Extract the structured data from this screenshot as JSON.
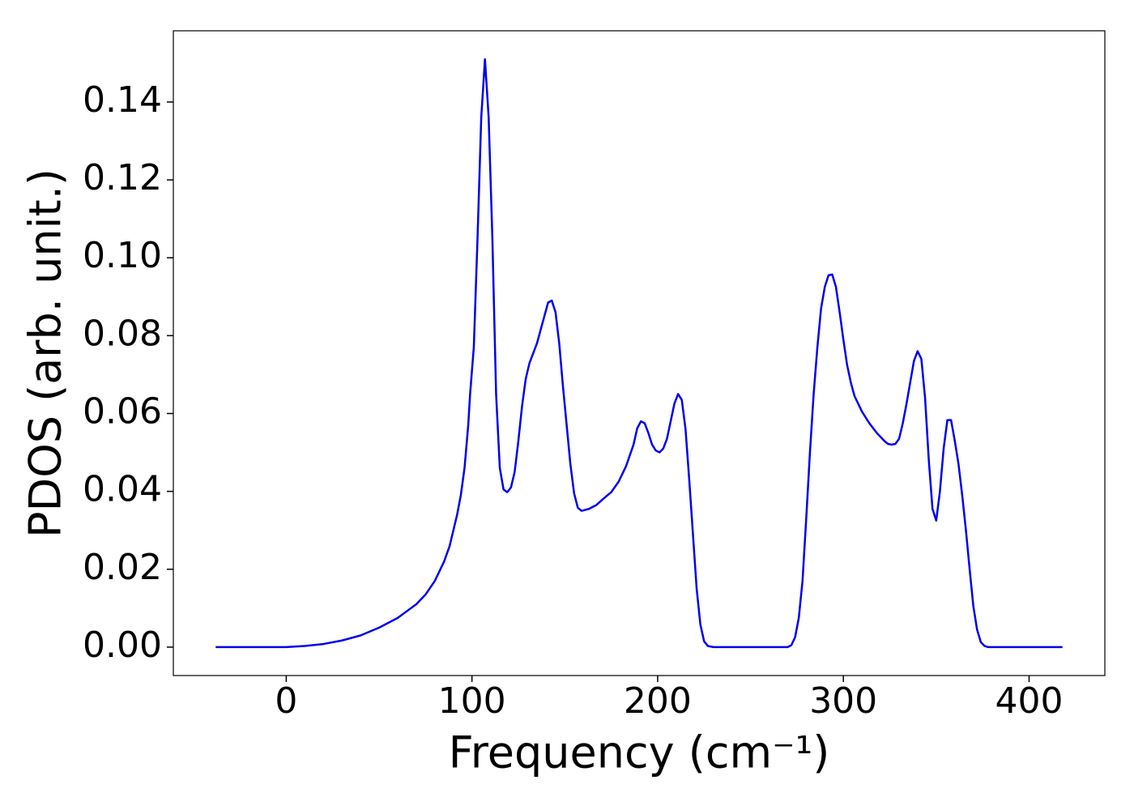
{
  "chart_data": {
    "type": "line",
    "xlabel": "Frequency (cm⁻¹)",
    "ylabel": "PDOS (arb. unit.)",
    "x": [
      -38,
      0,
      10,
      20,
      30,
      40,
      50,
      60,
      70,
      75,
      80,
      85,
      88,
      90,
      92,
      94,
      96,
      98,
      99,
      101,
      103,
      105,
      107,
      109,
      111,
      113,
      115,
      117,
      119,
      121,
      123,
      125,
      127,
      129,
      131,
      135,
      139,
      141,
      143,
      145,
      147,
      149,
      151,
      153,
      155,
      157,
      159,
      163,
      167,
      171,
      175,
      179,
      183,
      187,
      189,
      191,
      193,
      195,
      197,
      199,
      201,
      203,
      205,
      207,
      209,
      211,
      213,
      215,
      217,
      219,
      221,
      223,
      225,
      227,
      230,
      270,
      272,
      274,
      276,
      278,
      280,
      282,
      284,
      286,
      288,
      290,
      292,
      294,
      296,
      298,
      300,
      302,
      304,
      306,
      310,
      314,
      318,
      322,
      324,
      326,
      328,
      330,
      332,
      334,
      336,
      338,
      340,
      342,
      344,
      346,
      348,
      350,
      352,
      354,
      356,
      358,
      360,
      362,
      364,
      366,
      368,
      370,
      372,
      374,
      376,
      378,
      418
    ],
    "series": [
      {
        "color": "#0000ee",
        "values": [
          0,
          0,
          0.0003,
          0.0008,
          0.0017,
          0.003,
          0.005,
          0.0075,
          0.011,
          0.0135,
          0.017,
          0.022,
          0.026,
          0.03,
          0.034,
          0.039,
          0.046,
          0.057,
          0.065,
          0.077,
          0.105,
          0.136,
          0.151,
          0.136,
          0.105,
          0.065,
          0.046,
          0.0405,
          0.0398,
          0.041,
          0.045,
          0.053,
          0.062,
          0.069,
          0.073,
          0.078,
          0.085,
          0.0885,
          0.089,
          0.086,
          0.078,
          0.067,
          0.057,
          0.047,
          0.0395,
          0.0358,
          0.035,
          0.0355,
          0.0365,
          0.0382,
          0.0398,
          0.0425,
          0.0465,
          0.052,
          0.0562,
          0.058,
          0.0575,
          0.055,
          0.052,
          0.0505,
          0.05,
          0.051,
          0.0535,
          0.058,
          0.0625,
          0.065,
          0.0635,
          0.056,
          0.043,
          0.029,
          0.015,
          0.0058,
          0.0015,
          0.0003,
          0,
          0,
          0.0005,
          0.0025,
          0.0075,
          0.017,
          0.033,
          0.05,
          0.065,
          0.077,
          0.087,
          0.0925,
          0.0955,
          0.0957,
          0.0925,
          0.086,
          0.079,
          0.0725,
          0.068,
          0.0645,
          0.0605,
          0.0575,
          0.055,
          0.053,
          0.0522,
          0.052,
          0.0522,
          0.0535,
          0.0575,
          0.0625,
          0.068,
          0.0735,
          0.076,
          0.074,
          0.064,
          0.048,
          0.0355,
          0.0325,
          0.04,
          0.051,
          0.0583,
          0.0583,
          0.053,
          0.047,
          0.039,
          0.03,
          0.02,
          0.0105,
          0.0045,
          0.0013,
          0.0003,
          0,
          0
        ]
      }
    ],
    "xlim": [
      -60.8,
      440.8
    ],
    "xticks": [
      0,
      100,
      200,
      300,
      400
    ],
    "ylim": [
      -0.0073,
      0.1583
    ],
    "yticks": [
      {
        "value": 0,
        "label": "0.00"
      },
      {
        "value": 0.02,
        "label": "0.02"
      },
      {
        "value": 0.04,
        "label": "0.04"
      },
      {
        "value": 0.06,
        "label": "0.06"
      },
      {
        "value": 0.08,
        "label": "0.08"
      },
      {
        "value": 0.1,
        "label": "0.10"
      },
      {
        "value": 0.12,
        "label": "0.12"
      },
      {
        "value": 0.14,
        "label": "0.14"
      }
    ]
  }
}
